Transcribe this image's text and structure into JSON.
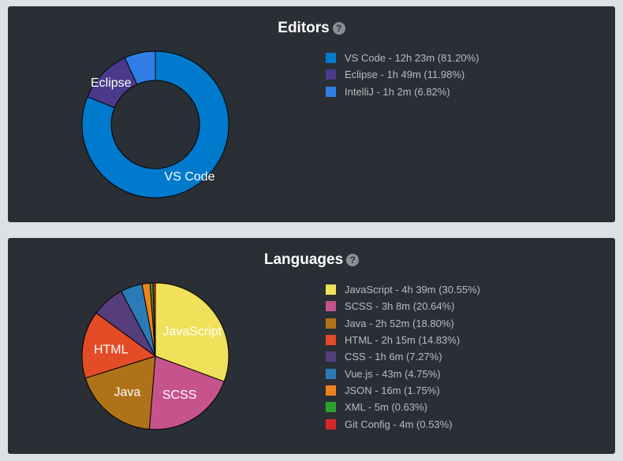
{
  "editors": {
    "title": "Editors",
    "chart_data": {
      "type": "pie",
      "variant": "doughnut",
      "title": "Editors",
      "slices": [
        {
          "label": "VS Code",
          "legend": "VS Code - 12h 23m (81.20%)",
          "value": 81.2,
          "color": "#007acc",
          "show_label": true
        },
        {
          "label": "Eclipse",
          "legend": "Eclipse - 1h 49m (11.98%)",
          "value": 11.98,
          "color": "#4b3a8c",
          "show_label": true
        },
        {
          "label": "IntelliJ",
          "legend": "IntelliJ - 1h 2m (6.82%)",
          "value": 6.82,
          "color": "#2f7ee6",
          "show_label": false
        }
      ],
      "legend_position": "right"
    }
  },
  "languages": {
    "title": "Languages",
    "chart_data": {
      "type": "pie",
      "title": "Languages",
      "slices": [
        {
          "label": "JavaScript",
          "legend": "JavaScript - 4h 39m (30.55%)",
          "value": 30.55,
          "color": "#f1e05a",
          "show_label": true
        },
        {
          "label": "SCSS",
          "legend": "SCSS - 3h 8m (20.64%)",
          "value": 20.64,
          "color": "#c6538c",
          "show_label": true
        },
        {
          "label": "Java",
          "legend": "Java - 2h 52m (18.80%)",
          "value": 18.8,
          "color": "#b07219",
          "show_label": true
        },
        {
          "label": "HTML",
          "legend": "HTML - 2h 15m (14.83%)",
          "value": 14.83,
          "color": "#e34c26",
          "show_label": true
        },
        {
          "label": "CSS",
          "legend": "CSS - 1h 6m (7.27%)",
          "value": 7.27,
          "color": "#563d7c",
          "show_label": false
        },
        {
          "label": "Vue.js",
          "legend": "Vue.js - 43m (4.75%)",
          "value": 4.75,
          "color": "#2b7bb9",
          "show_label": false
        },
        {
          "label": "JSON",
          "legend": "JSON - 16m (1.75%)",
          "value": 1.75,
          "color": "#f0821e",
          "show_label": false
        },
        {
          "label": "XML",
          "legend": "XML - 5m (0.63%)",
          "value": 0.63,
          "color": "#2ca02c",
          "show_label": false
        },
        {
          "label": "Git Config",
          "legend": "Git Config - 4m (0.53%)",
          "value": 0.53,
          "color": "#d62728",
          "show_label": false
        }
      ],
      "legend_position": "right"
    }
  }
}
